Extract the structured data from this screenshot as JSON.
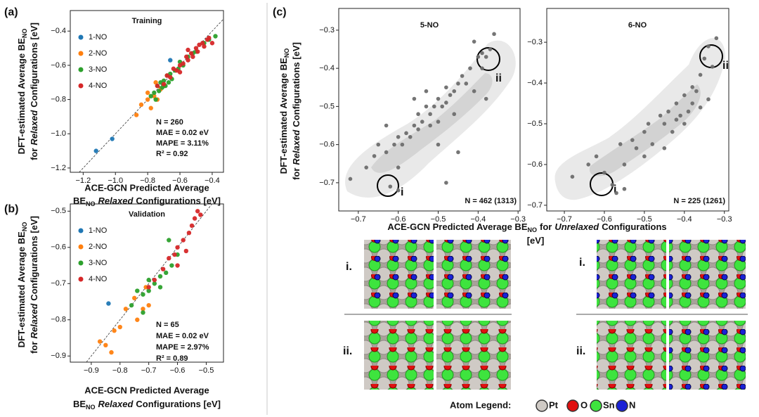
{
  "panels": [
    "(a)",
    "(b)",
    "(c)"
  ],
  "chart_data": [
    {
      "type": "scatter",
      "title": "Training",
      "xlabel": [
        [
          "ACE-GCN Predicted Average"
        ],
        [
          "BE",
          "NO",
          "Relaxed",
          "Configurations [eV]"
        ]
      ],
      "ylabel": [
        [
          "DFT-estimated Average BE",
          "NO"
        ],
        [
          "for",
          "Relaxed",
          "Configurations [eV]"
        ]
      ],
      "xlim": [
        -1.28,
        -0.33
      ],
      "ylim": [
        -1.225,
        -0.28
      ],
      "xticks": [
        {
          "value": -1.2,
          "label": "−1.2"
        },
        {
          "value": -1.0,
          "label": "−1.0"
        },
        {
          "value": -0.8,
          "label": "−0.8"
        },
        {
          "value": -0.6,
          "label": "−0.6"
        },
        {
          "value": -0.4,
          "label": "−0.4"
        }
      ],
      "yticks": [
        {
          "value": -1.2,
          "label": "−1.2"
        },
        {
          "value": -1.0,
          "label": "−1.0"
        },
        {
          "value": -0.8,
          "label": "−0.8"
        },
        {
          "value": -0.6,
          "label": "−0.6"
        },
        {
          "value": -0.4,
          "label": "−0.4"
        }
      ],
      "legend": "upper left",
      "parity_line": true,
      "annotation": [
        "N = 260",
        "MAE = 0.02 eV",
        "MAPE = 3.11%",
        "R² = 0.92"
      ],
      "series": [
        {
          "name": "1-NO",
          "color": "#1f77b4",
          "x": [
            -1.12,
            -1.02,
            -0.66
          ],
          "values": [
            -1.1,
            -1.03,
            -0.57
          ]
        },
        {
          "name": "2-NO",
          "color": "#ff7f0e",
          "x": [
            -0.87,
            -0.84,
            -0.8,
            -0.78,
            -0.76,
            -0.74,
            -0.72,
            -0.7,
            -0.68,
            -0.8,
            -0.75
          ],
          "values": [
            -0.89,
            -0.83,
            -0.8,
            -0.85,
            -0.78,
            -0.8,
            -0.74,
            -0.72,
            -0.66,
            -0.76,
            -0.7
          ]
        },
        {
          "name": "3-NO",
          "color": "#2ca02c",
          "x": [
            -0.78,
            -0.76,
            -0.75,
            -0.74,
            -0.73,
            -0.72,
            -0.71,
            -0.7,
            -0.69,
            -0.68,
            -0.67,
            -0.66,
            -0.65,
            -0.63,
            -0.61,
            -0.6,
            -0.58,
            -0.55,
            -0.52,
            -0.5,
            -0.45,
            -0.42,
            -0.38
          ],
          "values": [
            -0.78,
            -0.76,
            -0.8,
            -0.72,
            -0.75,
            -0.7,
            -0.73,
            -0.69,
            -0.72,
            -0.66,
            -0.7,
            -0.65,
            -0.68,
            -0.63,
            -0.62,
            -0.58,
            -0.6,
            -0.55,
            -0.53,
            -0.52,
            -0.47,
            -0.45,
            -0.43
          ]
        },
        {
          "name": "4-NO",
          "color": "#d62728",
          "x": [
            -0.74,
            -0.7,
            -0.68,
            -0.66,
            -0.64,
            -0.62,
            -0.6,
            -0.58,
            -0.56,
            -0.55,
            -0.53,
            -0.52,
            -0.5,
            -0.49,
            -0.48,
            -0.46,
            -0.45,
            -0.43,
            -0.42,
            -0.4,
            -0.6,
            -0.55
          ],
          "values": [
            -0.72,
            -0.71,
            -0.66,
            -0.67,
            -0.62,
            -0.63,
            -0.6,
            -0.59,
            -0.55,
            -0.57,
            -0.53,
            -0.55,
            -0.5,
            -0.52,
            -0.48,
            -0.47,
            -0.49,
            -0.45,
            -0.44,
            -0.47,
            -0.64,
            -0.51
          ]
        }
      ]
    },
    {
      "type": "scatter",
      "title": "Validation",
      "xlabel": [
        [
          "ACE-GCN Predicted Average"
        ],
        [
          "BE",
          "NO",
          "Relaxed",
          "Configurations [eV]"
        ]
      ],
      "ylabel": [
        [
          "DFT-estimated Average BE",
          "NO"
        ],
        [
          "for",
          "Relaxed",
          "Configurations [eV]"
        ]
      ],
      "xlim": [
        -0.973,
        -0.44
      ],
      "ylim": [
        -0.917,
        -0.48
      ],
      "xticks": [
        {
          "value": -0.9,
          "label": "−0.9"
        },
        {
          "value": -0.8,
          "label": "−0.8"
        },
        {
          "value": -0.7,
          "label": "−0.7"
        },
        {
          "value": -0.6,
          "label": "−0.6"
        },
        {
          "value": -0.5,
          "label": "−0.5"
        }
      ],
      "yticks": [
        {
          "value": -0.9,
          "label": "−0.9"
        },
        {
          "value": -0.8,
          "label": "−0.8"
        },
        {
          "value": -0.7,
          "label": "−0.7"
        },
        {
          "value": -0.6,
          "label": "−0.6"
        },
        {
          "value": -0.5,
          "label": "−0.5"
        }
      ],
      "legend": "upper left",
      "parity_line": true,
      "annotation": [
        "N = 65",
        "MAE = 0.02 eV",
        "MAPE = 2.97%",
        "R² = 0.89"
      ],
      "series": [
        {
          "name": "1-NO",
          "color": "#1f77b4",
          "x": [
            -0.84
          ],
          "values": [
            -0.755
          ]
        },
        {
          "name": "2-NO",
          "color": "#ff7f0e",
          "x": [
            -0.85,
            -0.82,
            -0.8,
            -0.78,
            -0.74,
            -0.72,
            -0.75,
            -0.7,
            -0.71,
            -0.87,
            -0.83
          ],
          "values": [
            -0.87,
            -0.83,
            -0.82,
            -0.77,
            -0.8,
            -0.77,
            -0.74,
            -0.76,
            -0.71,
            -0.86,
            -0.89
          ]
        },
        {
          "name": "3-NO",
          "color": "#2ca02c",
          "x": [
            -0.76,
            -0.74,
            -0.72,
            -0.7,
            -0.68,
            -0.66,
            -0.64,
            -0.62,
            -0.7,
            -0.66,
            -0.72,
            -0.6,
            -0.63
          ],
          "values": [
            -0.76,
            -0.72,
            -0.73,
            -0.69,
            -0.7,
            -0.68,
            -0.67,
            -0.65,
            -0.72,
            -0.71,
            -0.78,
            -0.62,
            -0.58
          ]
        },
        {
          "name": "4-NO",
          "color": "#d62728",
          "x": [
            -0.7,
            -0.68,
            -0.65,
            -0.63,
            -0.61,
            -0.6,
            -0.58,
            -0.56,
            -0.55,
            -0.54,
            -0.53,
            -0.6,
            -0.57,
            -0.52
          ],
          "values": [
            -0.71,
            -0.69,
            -0.66,
            -0.63,
            -0.62,
            -0.6,
            -0.58,
            -0.56,
            -0.54,
            -0.52,
            -0.5,
            -0.65,
            -0.61,
            -0.51
          ]
        }
      ]
    },
    {
      "type": "scatter",
      "title": "5-NO",
      "xlabel": [
        [
          "ACE-GCN Predicted Average BE",
          "NO",
          "for",
          "Unrelaxed",
          "Configurations"
        ],
        [
          "[eV]"
        ]
      ],
      "ylabel": [
        [
          "DFT-estimated Average BE",
          "NO"
        ],
        [
          "for",
          "Relaxed",
          "Configurations [eV]"
        ]
      ],
      "xlim": [
        -0.749,
        -0.295
      ],
      "ylim": [
        -0.774,
        -0.243
      ],
      "xticks": [
        {
          "value": -0.7,
          "label": "−0.7"
        },
        {
          "value": -0.6,
          "label": "−0.6"
        },
        {
          "value": -0.5,
          "label": "−0.5"
        },
        {
          "value": -0.4,
          "label": "−0.4"
        },
        {
          "value": -0.3,
          "label": "−0.3"
        }
      ],
      "yticks": [
        {
          "value": -0.7,
          "label": "−0.7"
        },
        {
          "value": -0.6,
          "label": "−0.6"
        },
        {
          "value": -0.5,
          "label": "−0.5"
        },
        {
          "value": -0.4,
          "label": "−0.4"
        },
        {
          "value": -0.3,
          "label": "−0.3"
        }
      ],
      "annotation": [
        "N = 462 (1313)"
      ],
      "series": [
        {
          "color": "#6e6e6e",
          "x": [
            -0.72,
            -0.68,
            -0.66,
            -0.65,
            -0.63,
            -0.62,
            -0.61,
            -0.6,
            -0.6,
            -0.59,
            -0.58,
            -0.57,
            -0.56,
            -0.55,
            -0.55,
            -0.54,
            -0.53,
            -0.52,
            -0.52,
            -0.51,
            -0.5,
            -0.5,
            -0.49,
            -0.48,
            -0.48,
            -0.47,
            -0.46,
            -0.45,
            -0.44,
            -0.43,
            -0.42,
            -0.41,
            -0.4,
            -0.39,
            -0.38,
            -0.37,
            -0.36,
            -0.6,
            -0.63,
            -0.5,
            -0.45,
            -0.56,
            -0.53,
            -0.46,
            -0.41,
            -0.39,
            -0.38,
            -0.48
          ],
          "values": [
            -0.69,
            -0.66,
            -0.63,
            -0.6,
            -0.62,
            -0.71,
            -0.6,
            -0.72,
            -0.58,
            -0.6,
            -0.57,
            -0.58,
            -0.55,
            -0.56,
            -0.52,
            -0.54,
            -0.5,
            -0.55,
            -0.52,
            -0.5,
            -0.54,
            -0.48,
            -0.5,
            -0.49,
            -0.45,
            -0.47,
            -0.46,
            -0.44,
            -0.42,
            -0.44,
            -0.4,
            -0.46,
            -0.37,
            -0.4,
            -0.37,
            -0.35,
            -0.31,
            -0.66,
            -0.55,
            -0.6,
            -0.62,
            -0.48,
            -0.46,
            -0.52,
            -0.33,
            -0.36,
            -0.48,
            -0.7
          ]
        }
      ]
    },
    {
      "type": "scatter",
      "title": "6-NO",
      "xlim": [
        -0.744,
        -0.289
      ],
      "ylim": [
        -0.714,
        -0.217
      ],
      "xticks": [
        {
          "value": -0.7,
          "label": "−0.7"
        },
        {
          "value": -0.6,
          "label": "−0.6"
        },
        {
          "value": -0.5,
          "label": "−0.5"
        },
        {
          "value": -0.4,
          "label": "−0.4"
        },
        {
          "value": -0.3,
          "label": "−0.3"
        }
      ],
      "yticks": [
        {
          "value": -0.7,
          "label": "−0.7"
        },
        {
          "value": -0.6,
          "label": "−0.6"
        },
        {
          "value": -0.5,
          "label": "−0.5"
        },
        {
          "value": -0.4,
          "label": "−0.4"
        },
        {
          "value": -0.3,
          "label": "−0.3"
        }
      ],
      "annotation": [
        "N = 225 (1261)"
      ],
      "series": [
        {
          "color": "#6e6e6e",
          "x": [
            -0.68,
            -0.64,
            -0.62,
            -0.6,
            -0.58,
            -0.57,
            -0.56,
            -0.55,
            -0.53,
            -0.52,
            -0.5,
            -0.49,
            -0.48,
            -0.46,
            -0.45,
            -0.44,
            -0.43,
            -0.42,
            -0.41,
            -0.4,
            -0.39,
            -0.38,
            -0.37,
            -0.36,
            -0.35,
            -0.34,
            -0.33,
            -0.32,
            -0.34,
            -0.36,
            -0.45,
            -0.5,
            -0.4,
            -0.38,
            -0.55,
            -0.42
          ],
          "values": [
            -0.63,
            -0.6,
            -0.58,
            -0.62,
            -0.65,
            -0.67,
            -0.55,
            -0.6,
            -0.54,
            -0.56,
            -0.52,
            -0.5,
            -0.55,
            -0.48,
            -0.5,
            -0.47,
            -0.52,
            -0.45,
            -0.48,
            -0.43,
            -0.47,
            -0.45,
            -0.42,
            -0.46,
            -0.34,
            -0.31,
            -0.36,
            -0.29,
            -0.44,
            -0.38,
            -0.56,
            -0.58,
            -0.5,
            -0.41,
            -0.66,
            -0.49
          ]
        }
      ]
    }
  ],
  "structures": {
    "highlights": [
      "i",
      "ii",
      "i",
      "ii"
    ],
    "labels": [
      "i.",
      "ii.",
      "i.",
      "ii."
    ]
  },
  "atom_legend": {
    "title": "Atom Legend:",
    "items": [
      "Pt",
      "O",
      "Sn",
      "N"
    ]
  }
}
